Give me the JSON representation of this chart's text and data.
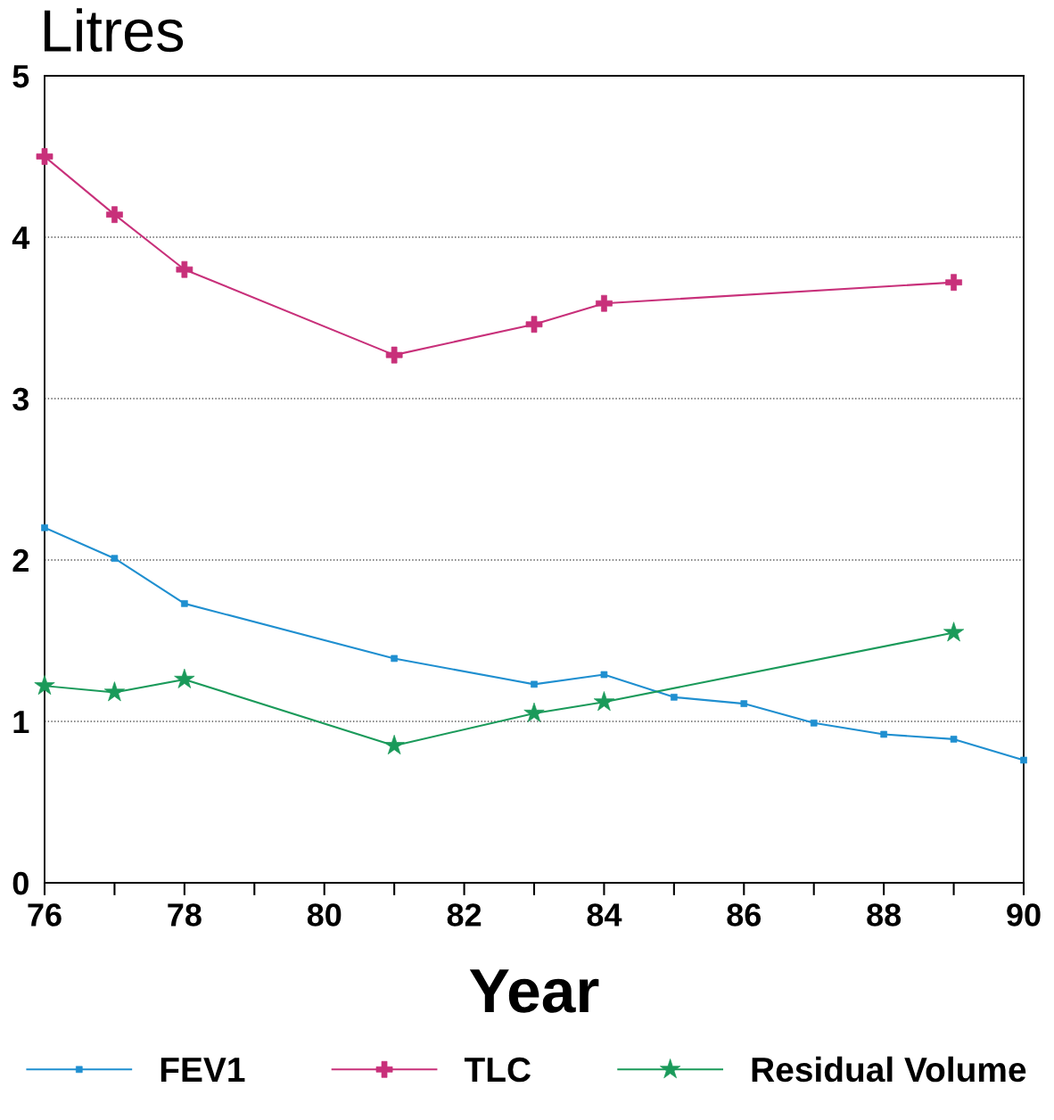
{
  "chart_data": {
    "type": "line",
    "ylabel": "Litres",
    "xlabel": "Year",
    "xlim": [
      76,
      90
    ],
    "ylim": [
      0,
      5
    ],
    "xticks": [
      76,
      {
        "value": 77,
        "label": null
      },
      78,
      {
        "value": 79,
        "label": null
      },
      80,
      {
        "value": 81,
        "label": null
      },
      82,
      {
        "value": 83,
        "label": null
      },
      84,
      {
        "value": 85,
        "label": null
      },
      86,
      {
        "value": 87,
        "label": null
      },
      88,
      {
        "value": 89,
        "label": null
      },
      90
    ],
    "yticks": [
      0,
      1,
      2,
      3,
      4,
      5
    ],
    "grid": "y",
    "legend": "bottom",
    "line_style": "solid",
    "series": [
      {
        "name": "FEV1",
        "color": "#1f8fd0",
        "marker": "square",
        "x": [
          76,
          77,
          78,
          81,
          83,
          84,
          85,
          86,
          87,
          88,
          89,
          90
        ],
        "values": [
          2.2,
          2.01,
          1.73,
          1.39,
          1.23,
          1.29,
          1.15,
          1.11,
          0.99,
          0.92,
          0.89,
          0.76
        ]
      },
      {
        "name": "TLC",
        "color": "#c8307a",
        "marker": "cross",
        "x": [
          76,
          77,
          78,
          81,
          83,
          84,
          89
        ],
        "values": [
          4.5,
          4.14,
          3.8,
          3.27,
          3.46,
          3.59,
          3.72
        ]
      },
      {
        "name": "Residual Volume",
        "color": "#1a9a5a",
        "marker": "star",
        "x": [
          76,
          77,
          78,
          81,
          83,
          84,
          89
        ],
        "values": [
          1.22,
          1.18,
          1.26,
          0.85,
          1.05,
          1.12,
          1.55
        ]
      }
    ]
  }
}
